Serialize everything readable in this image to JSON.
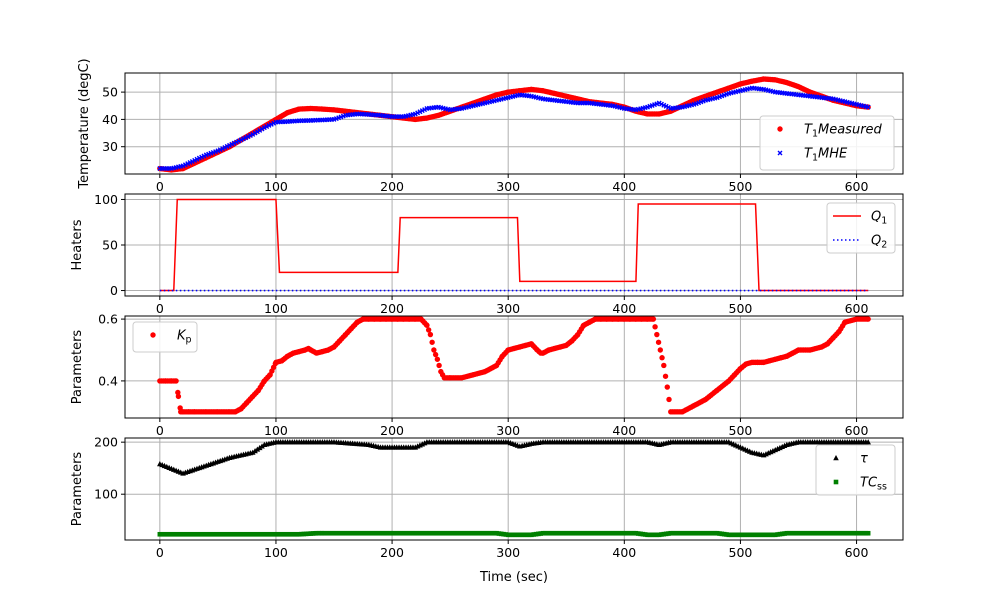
{
  "chart_data": [
    {
      "type": "scatter",
      "ylabel": "Temperature (degC)",
      "xlim": [
        -30,
        640
      ],
      "ylim": [
        20,
        57
      ],
      "xticks": [
        0,
        100,
        200,
        300,
        400,
        500,
        600
      ],
      "yticks": [
        30,
        40,
        50
      ],
      "grid": true,
      "legend_position": "lower-right",
      "series": [
        {
          "name": "T1 Measured",
          "label_main": "T",
          "label_sub": "1",
          "label_rest": "Measured",
          "marker": "circle",
          "color": "#ff0000",
          "x": [
            0,
            10,
            20,
            30,
            40,
            50,
            60,
            70,
            80,
            90,
            100,
            110,
            120,
            130,
            140,
            150,
            160,
            170,
            180,
            190,
            200,
            210,
            220,
            230,
            240,
            250,
            260,
            270,
            280,
            290,
            300,
            310,
            320,
            330,
            340,
            350,
            360,
            370,
            380,
            390,
            400,
            410,
            420,
            430,
            440,
            450,
            460,
            470,
            480,
            490,
            500,
            510,
            520,
            530,
            540,
            550,
            560,
            570,
            580,
            590,
            600,
            610
          ],
          "y": [
            22,
            21.5,
            22,
            24,
            26,
            28,
            30,
            32.5,
            35,
            37.5,
            40,
            42.5,
            43.8,
            44,
            43.8,
            43.5,
            43,
            42.5,
            42,
            41.5,
            41,
            40.5,
            40,
            40.5,
            41.5,
            43,
            44.5,
            46,
            47.5,
            49,
            50,
            50.5,
            51,
            50.5,
            49.5,
            48.5,
            47.5,
            46.5,
            46,
            45.5,
            44.5,
            43,
            42,
            42,
            43,
            45,
            47,
            48.5,
            50,
            51.5,
            53,
            54,
            54.8,
            54.5,
            53.5,
            52,
            50,
            48.5,
            47,
            46,
            45,
            44.5
          ]
        },
        {
          "name": "T1 MHE",
          "label_main": "T",
          "label_sub": "1",
          "label_rest": "MHE",
          "marker": "x",
          "color": "#0000ff",
          "x": [
            0,
            10,
            20,
            30,
            40,
            50,
            60,
            70,
            80,
            90,
            100,
            110,
            120,
            130,
            140,
            150,
            160,
            170,
            180,
            190,
            200,
            210,
            220,
            230,
            240,
            250,
            260,
            270,
            280,
            290,
            300,
            310,
            320,
            330,
            340,
            350,
            360,
            370,
            380,
            390,
            400,
            410,
            420,
            430,
            440,
            450,
            460,
            470,
            480,
            490,
            500,
            510,
            520,
            530,
            540,
            550,
            560,
            570,
            580,
            590,
            600,
            610
          ],
          "y": [
            22,
            22,
            23,
            25,
            27,
            28.5,
            30.5,
            32.5,
            34.5,
            37,
            39,
            39.2,
            39.5,
            39.6,
            39.8,
            40,
            41.5,
            42,
            41.8,
            41.5,
            41,
            41,
            42,
            44,
            44.5,
            43.5,
            44,
            45,
            46,
            47,
            48,
            49,
            48.5,
            47.5,
            47,
            46.5,
            46,
            46,
            45.5,
            45,
            44,
            43.5,
            44.5,
            46,
            44,
            44.5,
            45.5,
            47,
            48,
            49.5,
            50.5,
            51.5,
            51,
            50,
            49.5,
            49,
            48.5,
            48,
            47.5,
            46.5,
            45.5,
            44.5
          ]
        }
      ]
    },
    {
      "type": "line",
      "ylabel": "Heaters",
      "xlim": [
        -30,
        640
      ],
      "ylim": [
        -6,
        106
      ],
      "xticks": [
        0,
        100,
        200,
        300,
        400,
        500,
        600
      ],
      "yticks": [
        0,
        50,
        100
      ],
      "grid": true,
      "legend_position": "upper-right",
      "series": [
        {
          "name": "Q1",
          "label_main": "Q",
          "label_sub": "1",
          "style": "solid",
          "color": "#ff0000",
          "x": [
            0,
            12,
            15,
            100,
            103,
            205,
            207,
            308,
            310,
            410,
            412,
            513,
            516,
            610
          ],
          "y": [
            0,
            0,
            100,
            100,
            20,
            20,
            80,
            80,
            10,
            10,
            95,
            95,
            0,
            0
          ]
        },
        {
          "name": "Q2",
          "label_main": "Q",
          "label_sub": "2",
          "style": "dotted",
          "color": "#0000ff",
          "x": [
            0,
            610
          ],
          "y": [
            0,
            0
          ]
        }
      ]
    },
    {
      "type": "scatter",
      "ylabel": "Parameters",
      "xlim": [
        -30,
        640
      ],
      "ylim": [
        0.28,
        0.61
      ],
      "xticks": [
        0,
        100,
        200,
        300,
        400,
        500,
        600
      ],
      "yticks": [
        0.4,
        0.6
      ],
      "ytick_format": "0.1",
      "grid": true,
      "legend_position": "upper-left",
      "series": [
        {
          "name": "Kp",
          "label_main": "K",
          "label_sub": "p",
          "marker": "circle",
          "color": "#ff0000",
          "x": [
            0,
            5,
            10,
            14,
            16,
            18,
            20,
            25,
            30,
            40,
            50,
            60,
            65,
            70,
            75,
            80,
            85,
            90,
            95,
            100,
            105,
            110,
            115,
            120,
            125,
            128,
            130,
            135,
            140,
            145,
            150,
            155,
            160,
            165,
            170,
            175,
            180,
            185,
            190,
            195,
            200,
            205,
            210,
            215,
            220,
            225,
            230,
            233,
            236,
            239,
            242,
            245,
            250,
            260,
            270,
            280,
            290,
            295,
            300,
            305,
            310,
            315,
            320,
            325,
            328,
            330,
            335,
            340,
            345,
            350,
            355,
            360,
            365,
            370,
            375,
            380,
            385,
            390,
            395,
            400,
            405,
            410,
            415,
            420,
            425,
            428,
            431,
            434,
            437,
            440,
            450,
            460,
            470,
            480,
            490,
            495,
            500,
            505,
            510,
            515,
            520,
            525,
            530,
            535,
            540,
            545,
            550,
            560,
            570,
            575,
            580,
            585,
            590,
            600,
            610
          ],
          "y": [
            0.4,
            0.4,
            0.4,
            0.4,
            0.35,
            0.3,
            0.3,
            0.3,
            0.3,
            0.3,
            0.3,
            0.3,
            0.3,
            0.31,
            0.33,
            0.35,
            0.37,
            0.4,
            0.42,
            0.46,
            0.465,
            0.48,
            0.49,
            0.495,
            0.5,
            0.505,
            0.5,
            0.49,
            0.495,
            0.5,
            0.51,
            0.53,
            0.55,
            0.57,
            0.59,
            0.6,
            0.6,
            0.6,
            0.6,
            0.6,
            0.6,
            0.6,
            0.6,
            0.6,
            0.6,
            0.6,
            0.58,
            0.55,
            0.5,
            0.47,
            0.43,
            0.41,
            0.41,
            0.41,
            0.42,
            0.43,
            0.45,
            0.48,
            0.5,
            0.505,
            0.51,
            0.515,
            0.52,
            0.5,
            0.49,
            0.49,
            0.5,
            0.505,
            0.51,
            0.515,
            0.53,
            0.55,
            0.58,
            0.59,
            0.6,
            0.6,
            0.6,
            0.6,
            0.6,
            0.6,
            0.6,
            0.6,
            0.6,
            0.6,
            0.6,
            0.55,
            0.5,
            0.45,
            0.38,
            0.3,
            0.3,
            0.32,
            0.34,
            0.37,
            0.4,
            0.42,
            0.44,
            0.455,
            0.46,
            0.46,
            0.46,
            0.465,
            0.47,
            0.475,
            0.48,
            0.49,
            0.5,
            0.5,
            0.51,
            0.52,
            0.54,
            0.56,
            0.59,
            0.6,
            0.6
          ]
        }
      ]
    },
    {
      "type": "scatter",
      "ylabel": "Parameters",
      "xlabel": "Time (sec)",
      "xlim": [
        -30,
        640
      ],
      "ylim": [
        12,
        208
      ],
      "xticks": [
        0,
        100,
        200,
        300,
        400,
        500,
        600
      ],
      "yticks": [
        100,
        200
      ],
      "grid": true,
      "legend_position": "right",
      "series": [
        {
          "name": "tau",
          "label_main": "τ",
          "label_sub": "",
          "marker": "triangle",
          "color": "#000000",
          "x": [
            0,
            20,
            40,
            60,
            70,
            80,
            90,
            100,
            150,
            180,
            190,
            200,
            210,
            220,
            230,
            240,
            290,
            300,
            310,
            320,
            330,
            400,
            420,
            430,
            440,
            490,
            500,
            510,
            520,
            530,
            540,
            550,
            600,
            610
          ],
          "y": [
            158,
            140,
            155,
            170,
            175,
            180,
            195,
            200,
            200,
            195,
            190,
            190,
            190,
            190,
            200,
            200,
            200,
            200,
            192,
            197,
            200,
            200,
            200,
            195,
            200,
            200,
            190,
            180,
            175,
            185,
            195,
            200,
            200,
            200
          ]
        },
        {
          "name": "TCss",
          "label_main": "TC",
          "label_sub": "ss",
          "marker": "square",
          "color": "#008000",
          "x": [
            0,
            40,
            80,
            120,
            135,
            140,
            200,
            290,
            300,
            320,
            330,
            410,
            420,
            430,
            440,
            480,
            490,
            520,
            530,
            540,
            610
          ],
          "y": [
            23,
            23,
            23,
            23,
            25,
            25,
            25,
            25,
            22,
            22,
            25,
            25,
            22,
            22,
            25,
            25,
            22,
            22,
            22,
            25,
            25
          ]
        }
      ]
    }
  ]
}
